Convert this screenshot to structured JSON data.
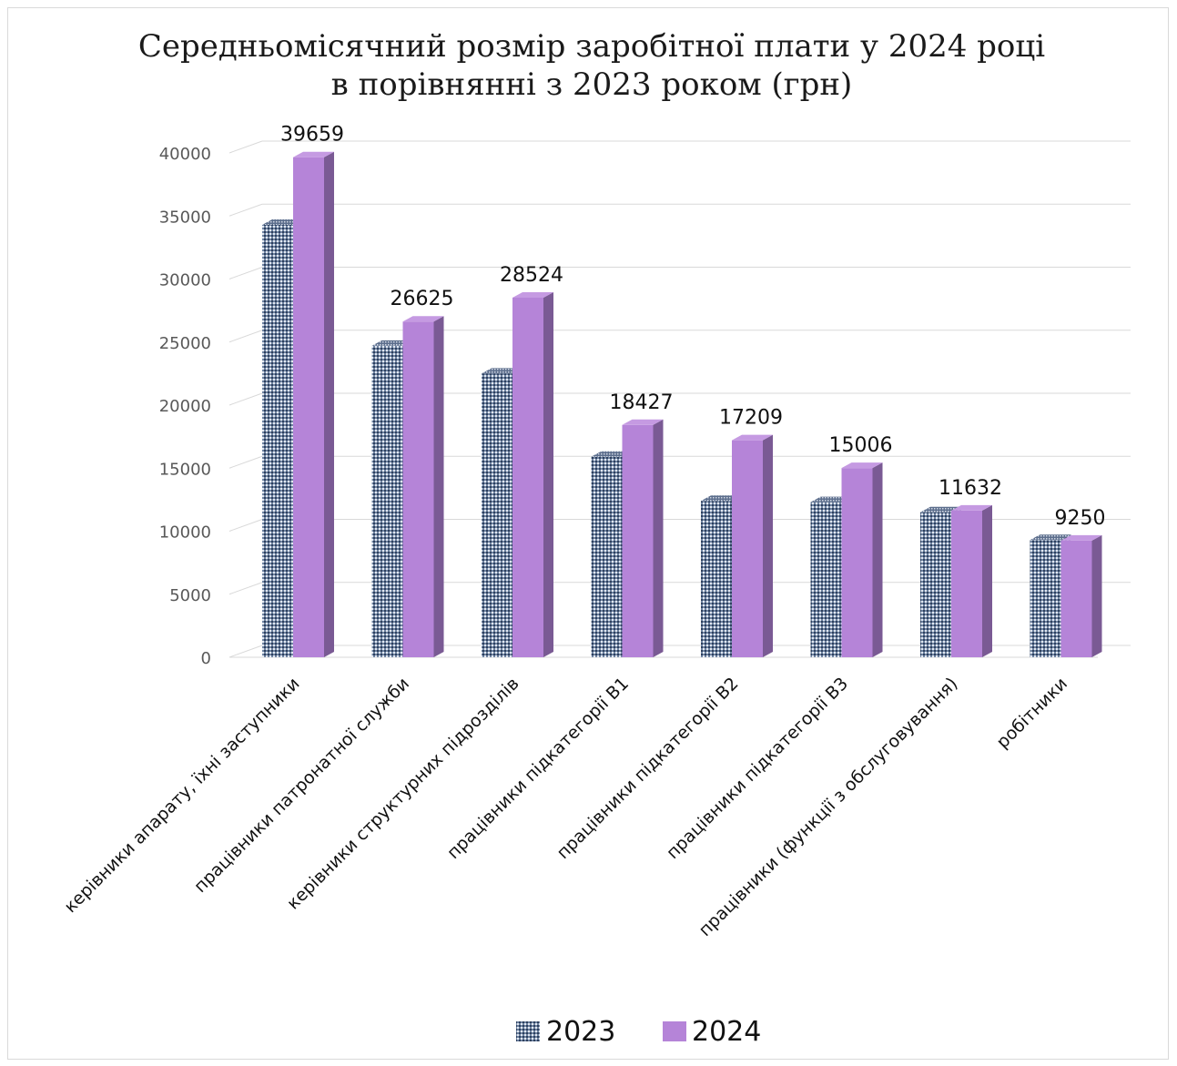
{
  "chart_data": {
    "type": "bar",
    "title_lines": [
      "Середньомісячний розмір заробітної плати у 2024 році",
      "в порівнянні з 2023 роком (грн)"
    ],
    "categories": [
      "керівники апарату, їхні  заступники",
      "працівники патронатної служби",
      "керівники структурних підрозділів",
      "працівники підкатегорії В1",
      "працівники підкатегорії В2",
      "працівники підкатегорії В3",
      "працівники (функції з обслуговування)",
      "робітники"
    ],
    "series": [
      {
        "name": "2023",
        "values": [
          34300,
          24700,
          22500,
          15900,
          12400,
          12300,
          11500,
          9300
        ],
        "color": "#8497b0",
        "pattern": "dotted"
      },
      {
        "name": "2024",
        "values": [
          39659,
          26625,
          28524,
          18427,
          17209,
          15006,
          11632,
          9250
        ],
        "color": "#b584d8"
      }
    ],
    "data_labels": [
      "39659",
      "26625",
      "28524",
      "18427",
      "17209",
      "15006",
      "11632",
      "9250"
    ],
    "yticks": [
      "0",
      "5000",
      "10000",
      "15000",
      "20000",
      "25000",
      "30000",
      "35000",
      "40000"
    ],
    "ylim": [
      0,
      40000
    ],
    "grid": true,
    "legend_position": "bottom"
  }
}
